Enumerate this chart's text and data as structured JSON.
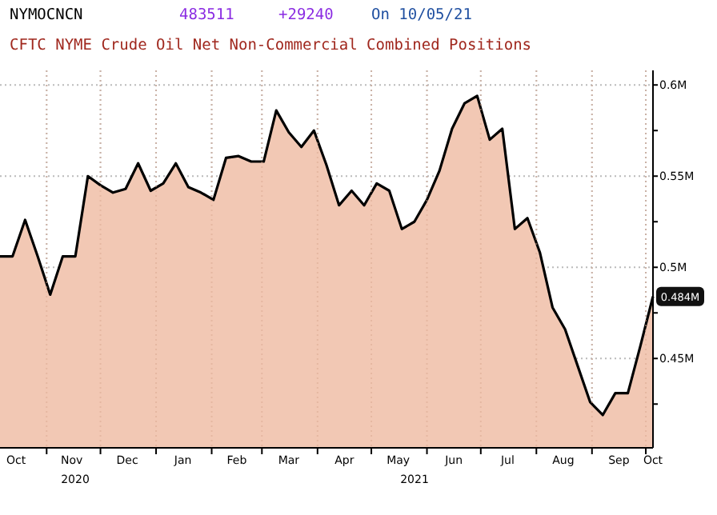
{
  "chart_data": {
    "type": "area",
    "title": "CFTC NYME Crude Oil Net Non-Commercial Combined Positions",
    "annotations": [
      "NYMOCNCN",
      "483511",
      "+29240",
      "On 10/05/21",
      {
        "text": "0.484M",
        "x": "2021-10-05",
        "y": 0.484
      },
      "2020",
      "2021"
    ],
    "x": [
      "2020-10-06",
      "2020-10-13",
      "2020-10-20",
      "2020-10-27",
      "2020-11-03",
      "2020-11-10",
      "2020-11-17",
      "2020-11-24",
      "2020-12-01",
      "2020-12-08",
      "2020-12-15",
      "2020-12-22",
      "2020-12-29",
      "2021-01-05",
      "2021-01-12",
      "2021-01-19",
      "2021-01-26",
      "2021-02-02",
      "2021-02-09",
      "2021-02-16",
      "2021-02-23",
      "2021-03-02",
      "2021-03-09",
      "2021-03-16",
      "2021-03-23",
      "2021-03-30",
      "2021-04-06",
      "2021-04-13",
      "2021-04-20",
      "2021-04-27",
      "2021-05-04",
      "2021-05-11",
      "2021-05-18",
      "2021-05-25",
      "2021-06-01",
      "2021-06-08",
      "2021-06-15",
      "2021-06-22",
      "2021-06-29",
      "2021-07-06",
      "2021-07-13",
      "2021-07-20",
      "2021-07-27",
      "2021-08-03",
      "2021-08-10",
      "2021-08-17",
      "2021-08-24",
      "2021-08-31",
      "2021-09-07",
      "2021-09-14",
      "2021-09-21",
      "2021-09-28",
      "2021-10-05"
    ],
    "series": [
      {
        "color": "#f2c8b4",
        "values": [
          0.506,
          0.506,
          0.526,
          0.506,
          0.485,
          0.506,
          0.506,
          0.55,
          0.545,
          0.541,
          0.543,
          0.557,
          0.542,
          0.546,
          0.557,
          0.544,
          0.541,
          0.537,
          0.56,
          0.561,
          0.558,
          0.558,
          0.586,
          0.574,
          0.566,
          0.575,
          0.556,
          0.534,
          0.542,
          0.534,
          0.546,
          0.542,
          0.521,
          0.525,
          0.537,
          0.553,
          0.576,
          0.59,
          0.594,
          0.57,
          0.576,
          0.521,
          0.527,
          0.508,
          0.478,
          0.466,
          0.446,
          0.426,
          0.419,
          0.431,
          0.431,
          0.457,
          0.484
        ]
      }
    ],
    "xlim": [
      "2020-10-06",
      "2021-10-05"
    ],
    "xticks": [
      {
        "value": "2020-10-15",
        "label": "Oct"
      },
      {
        "value": "2020-11-01",
        "label": null
      },
      {
        "value": "2020-11-15",
        "label": "Nov"
      },
      {
        "value": "2020-12-01",
        "label": null
      },
      {
        "value": "2020-12-16",
        "label": "Dec"
      },
      {
        "value": "2021-01-01",
        "label": null
      },
      {
        "value": "2021-01-16",
        "label": "Jan"
      },
      {
        "value": "2021-02-01",
        "label": null
      },
      {
        "value": "2021-02-15",
        "label": "Feb"
      },
      {
        "value": "2021-03-01",
        "label": null
      },
      {
        "value": "2021-03-16",
        "label": "Mar"
      },
      {
        "value": "2021-04-01",
        "label": null
      },
      {
        "value": "2021-04-16",
        "label": "Apr"
      },
      {
        "value": "2021-05-01",
        "label": null
      },
      {
        "value": "2021-05-16",
        "label": "May"
      },
      {
        "value": "2021-06-01",
        "label": null
      },
      {
        "value": "2021-06-16",
        "label": "Jun"
      },
      {
        "value": "2021-07-01",
        "label": null
      },
      {
        "value": "2021-07-16",
        "label": "Jul"
      },
      {
        "value": "2021-08-01",
        "label": null
      },
      {
        "value": "2021-08-16",
        "label": "Aug"
      },
      {
        "value": "2021-09-01",
        "label": null
      },
      {
        "value": "2021-09-16",
        "label": "Sep"
      },
      {
        "value": "2021-10-01",
        "label": null
      },
      {
        "value": "2021-10-05",
        "label": "Oct"
      }
    ],
    "ylim": [
      0.401,
      0.608
    ],
    "yticks": [
      {
        "value": 0.425,
        "label": null
      },
      {
        "value": 0.45,
        "label": "0.45M"
      },
      {
        "value": 0.475,
        "label": null
      },
      {
        "value": 0.5,
        "label": "0.5M"
      },
      {
        "value": 0.525,
        "label": null
      },
      {
        "value": 0.55,
        "label": "0.55M"
      },
      {
        "value": 0.575,
        "label": null
      },
      {
        "value": 0.6,
        "label": "0.6M"
      }
    ],
    "grid": true,
    "marker": "none",
    "line_style": "solid"
  }
}
